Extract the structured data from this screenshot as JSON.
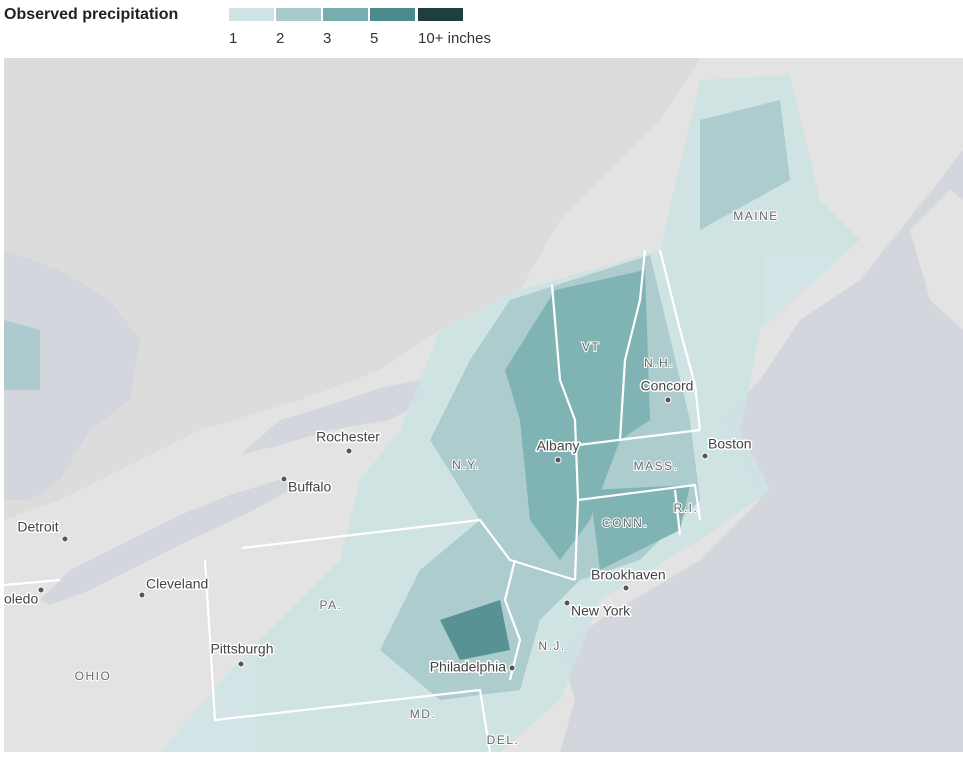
{
  "legend": {
    "title": "Observed precipitation",
    "colors": [
      "#cfe3e4",
      "#a8cacc",
      "#76aeb0",
      "#4a8a8d",
      "#1f3e40"
    ],
    "labels": [
      "1",
      "2",
      "3",
      "5",
      "10+ inches"
    ]
  },
  "places": [
    "Rochester",
    "Buffalo",
    "Albany",
    "Concord",
    "Boston",
    "Detroit",
    "Cleveland",
    "oledo",
    "Pittsburgh",
    "Brookhaven",
    "New York",
    "Philadelphia"
  ],
  "states": [
    "MAINE",
    "N.H.",
    "VT",
    "MASS.",
    "N.Y.",
    "CONN.",
    "R.I.",
    "PA.",
    "N.J.",
    "OHIO",
    "MD.",
    "DEL."
  ]
}
